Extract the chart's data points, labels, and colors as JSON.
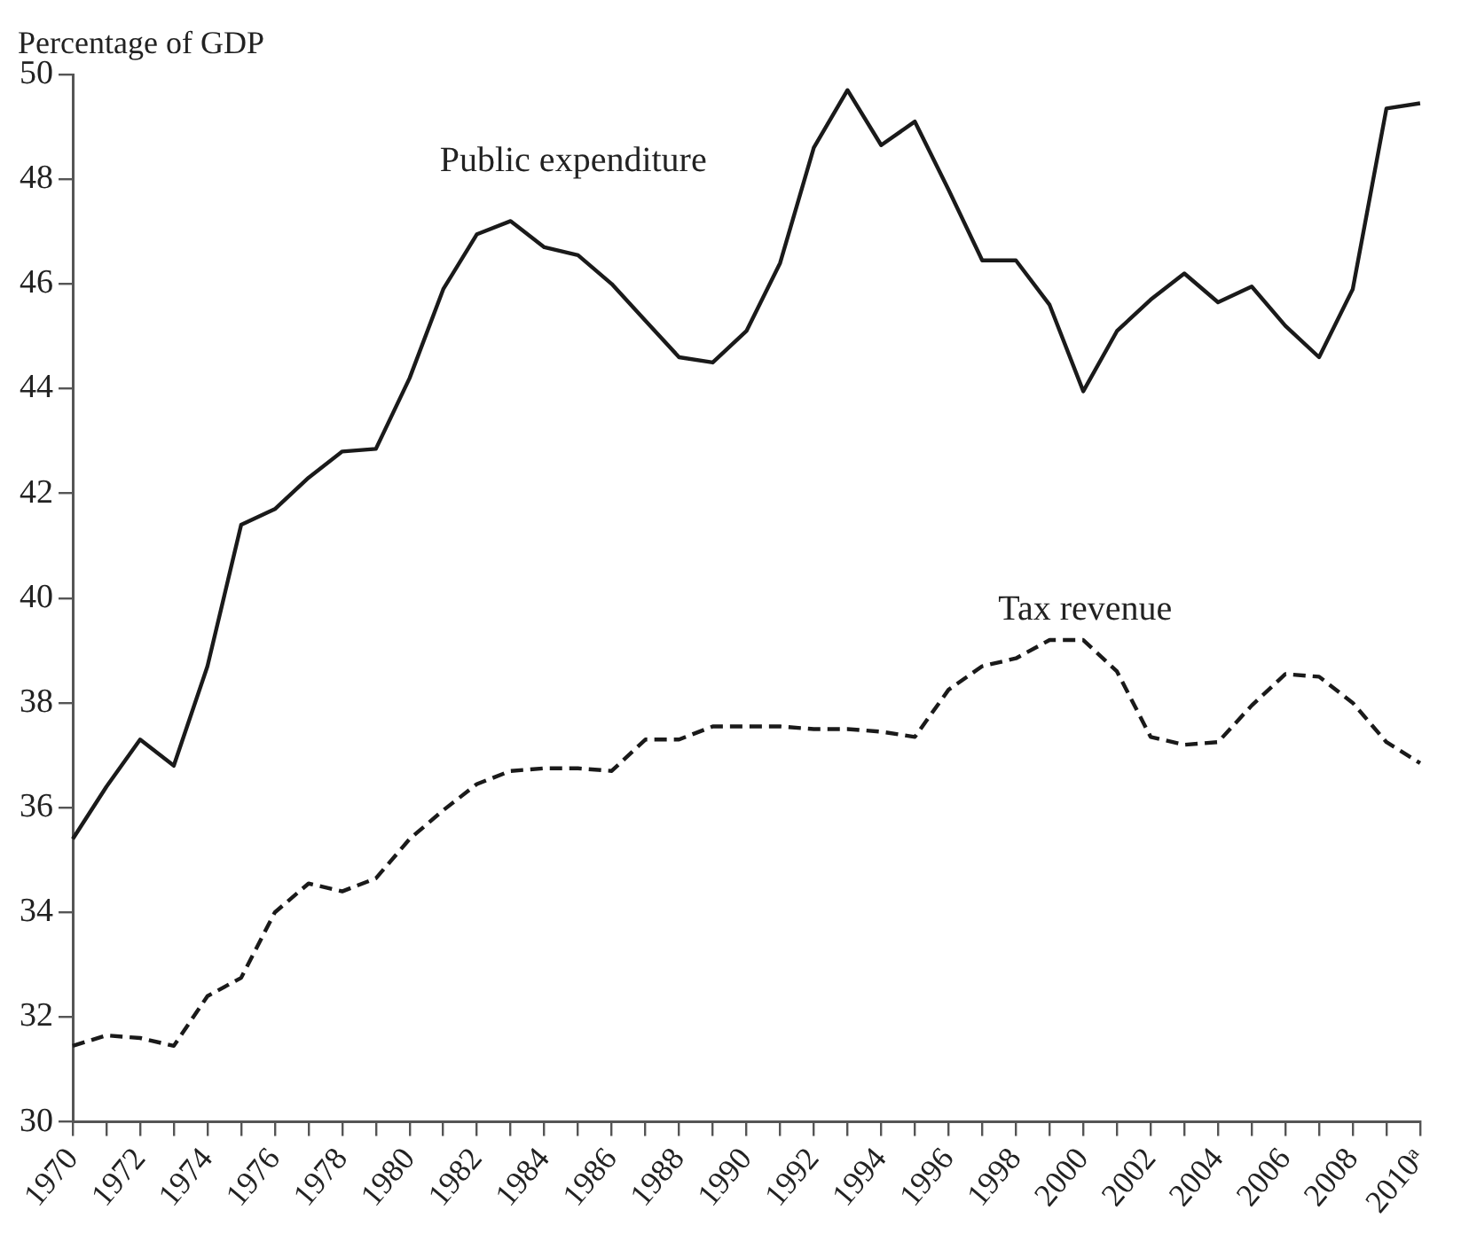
{
  "chart_data": {
    "type": "line",
    "ylabel": "Percentage of GDP",
    "categories": [
      "1970",
      null,
      "1972",
      null,
      "1974",
      null,
      "1976",
      null,
      "1978",
      null,
      "1980",
      null,
      "1982",
      null,
      "1984",
      null,
      "1986",
      null,
      "1988",
      null,
      "1990",
      null,
      "1992",
      null,
      "1994",
      null,
      "1996",
      null,
      "1998",
      null,
      "2000",
      null,
      "2002",
      null,
      "2004",
      null,
      "2006",
      null,
      "2008",
      null,
      "2010ᵃ"
    ],
    "series": [
      {
        "name": "Public expenditure",
        "color": "#1a1a1a",
        "line_style": "solid",
        "values": [
          35.4,
          36.4,
          37.3,
          36.8,
          38.7,
          41.4,
          41.7,
          42.3,
          42.8,
          42.85,
          44.2,
          45.9,
          46.95,
          47.2,
          46.7,
          46.55,
          46.0,
          45.3,
          44.6,
          44.5,
          45.1,
          46.4,
          48.6,
          49.7,
          48.65,
          49.1,
          47.8,
          46.45,
          46.45,
          45.6,
          43.95,
          45.1,
          45.7,
          46.2,
          45.65,
          45.95,
          45.2,
          44.6,
          45.9,
          49.35,
          49.45
        ]
      },
      {
        "name": "Tax revenue",
        "color": "#1a1a1a",
        "line_style": "dashed",
        "values": [
          31.45,
          31.65,
          31.6,
          31.45,
          32.4,
          32.75,
          34.0,
          34.55,
          34.4,
          34.65,
          35.4,
          35.95,
          36.45,
          36.7,
          36.75,
          36.75,
          36.7,
          37.3,
          37.3,
          37.55,
          37.55,
          37.55,
          37.5,
          37.5,
          37.45,
          37.35,
          38.25,
          38.7,
          38.85,
          39.2,
          39.2,
          38.6,
          37.35,
          37.2,
          37.25,
          37.95,
          38.55,
          38.5,
          38.0,
          37.25,
          36.85
        ]
      }
    ],
    "ylim": [
      30,
      50
    ],
    "yticks": [
      30,
      32,
      34,
      36,
      38,
      40,
      42,
      44,
      46,
      48,
      50
    ],
    "grid": false,
    "legend": false,
    "marker": "none"
  }
}
